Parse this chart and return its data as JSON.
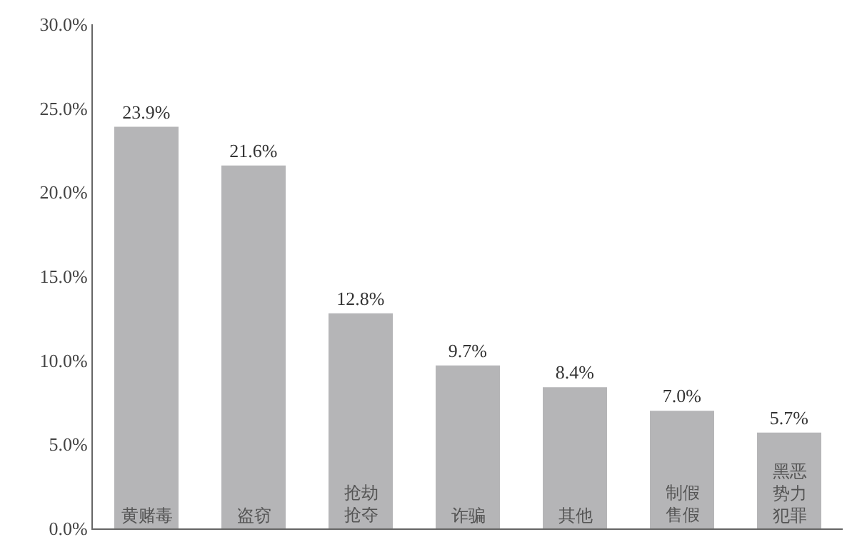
{
  "chart_data": {
    "type": "bar",
    "categories": [
      "黄赌毒",
      "盗窃",
      "抢劫抢夺",
      "诈骗",
      "其他",
      "制假售假",
      "黑恶势力犯罪"
    ],
    "values": [
      23.9,
      21.6,
      12.8,
      9.7,
      8.4,
      7.0,
      5.7
    ],
    "value_labels": [
      "23.9%",
      "21.6%",
      "12.8%",
      "9.7%",
      "8.4%",
      "7.0%",
      "5.7%"
    ],
    "color": "#b5b5b7",
    "ylim": [
      0,
      30
    ],
    "yticks": [
      {
        "value": 0,
        "label": "0.0%"
      },
      {
        "value": 5,
        "label": "5.0%"
      },
      {
        "value": 10,
        "label": "10.0%"
      },
      {
        "value": 15,
        "label": "15.0%"
      },
      {
        "value": 20,
        "label": "20.0%"
      },
      {
        "value": 25,
        "label": "25.0%"
      },
      {
        "value": 30,
        "label": "30.0%"
      }
    ],
    "grid": false,
    "legend": false
  }
}
